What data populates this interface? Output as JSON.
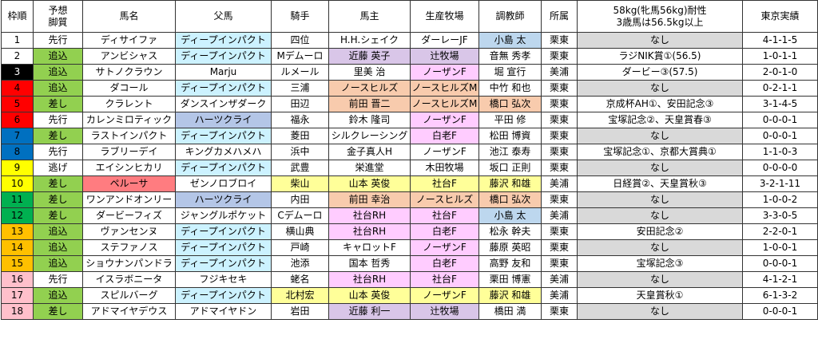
{
  "headers": {
    "waku": "枠順",
    "yoso": [
      "予想",
      "脚質"
    ],
    "horse": "馬名",
    "sire": "父馬",
    "jockey": "騎手",
    "owner": "馬主",
    "farm": "生産牧場",
    "trainer": "調教師",
    "stable": "所属",
    "durability": [
      "58kg(牝馬56kg)耐性",
      "3歳馬は56.5kg以上"
    ],
    "tokyo": "東京実績"
  },
  "colors": {
    "waku": {
      "1": "#ffffff",
      "2": "#ffffff",
      "3": "#000000",
      "4": "#ff0000",
      "5": "#ff0000",
      "6": "#ff0000",
      "7": "#0070c0",
      "8": "#0070c0",
      "9": "#ffff00",
      "10": "#ffff00",
      "11": "#00b050",
      "12": "#00b050",
      "13": "#ffc000",
      "14": "#ffc000",
      "15": "#ffc000",
      "16": "#ffc0cb",
      "17": "#ffc0cb",
      "18": "#ffc0cb"
    },
    "style_green": "#92d050",
    "sire_blue": "#ccf2ff",
    "sire_purple": "#b4c6e7",
    "horse_red": "#ff7c80",
    "owner_lavender": "#d9c6e8",
    "farm_orange": "#f8cbad",
    "farm_pink": "#ffccff",
    "owner_yellow": "#ffff99",
    "trainer_blue": "#bdd7ee",
    "trainer_lavender": "#e4dfec",
    "shadow_grey": "#d9d9d9"
  },
  "rows": [
    {
      "waku": "1",
      "style": "先行",
      "horse": "ディサイファ",
      "sire": "ディープインパクト",
      "jockey": "四位",
      "owner": "H.H.シェイク",
      "farm": "ダーレーJF",
      "trainer": "小島 太",
      "stable": "栗東",
      "durability": "なし",
      "tokyo": "4-1-1-5"
    },
    {
      "waku": "2",
      "style": "追込",
      "horse": "アンビシャス",
      "sire": "ディープインパクト",
      "jockey": "Mデムーロ",
      "owner": "近藤 英子",
      "farm": "辻牧場",
      "trainer": "音無 秀孝",
      "stable": "栗東",
      "durability": "ラジNIK賞①(56.5)",
      "tokyo": "1-0-1-1"
    },
    {
      "waku": "3",
      "style": "追込",
      "horse": "サトノクラウン",
      "sire": "Marju",
      "jockey": "ルメール",
      "owner": "里美 治",
      "farm": "ノーザンF",
      "trainer": "堀 宣行",
      "stable": "美浦",
      "durability": "ダービー③(57.5)",
      "tokyo": "2-0-1-0"
    },
    {
      "waku": "4",
      "style": "追込",
      "horse": "ダコール",
      "sire": "ディープインパクト",
      "jockey": "三浦",
      "owner": "ノースヒルズ",
      "farm": "ノースヒルズM",
      "trainer": "中竹 和也",
      "stable": "栗東",
      "durability": "なし",
      "tokyo": "0-2-1-1"
    },
    {
      "waku": "5",
      "style": "差し",
      "horse": "クラレント",
      "sire": "ダンスインザダーク",
      "jockey": "田辺",
      "owner": "前田 晋二",
      "farm": "ノースヒルズM",
      "trainer": "橋口 弘次",
      "stable": "栗東",
      "durability": "京成杯AH①、安田記念③",
      "tokyo": "3-1-4-5"
    },
    {
      "waku": "6",
      "style": "先行",
      "horse": "カレンミロティック",
      "sire": "ハーツクライ",
      "jockey": "福永",
      "owner": "鈴木 隆司",
      "farm": "ノーザンF",
      "trainer": "平田 修",
      "stable": "栗東",
      "durability": "宝塚記念②、天皇賞春③",
      "tokyo": "0-0-0-1"
    },
    {
      "waku": "7",
      "style": "差し",
      "horse": "ラストインパクト",
      "sire": "ディープインパクト",
      "jockey": "菱田",
      "owner": "シルクレーシング",
      "farm": "白老F",
      "trainer": "松田 博資",
      "stable": "栗東",
      "durability": "なし",
      "tokyo": "0-0-0-1"
    },
    {
      "waku": "8",
      "style": "先行",
      "horse": "ラブリーデイ",
      "sire": "キングカメハメハ",
      "jockey": "浜中",
      "owner": "金子真人H",
      "farm": "ノーザンF",
      "trainer": "池江 泰寿",
      "stable": "栗東",
      "durability": "宝塚記念①、京都大賞典①",
      "tokyo": "1-1-0-3"
    },
    {
      "waku": "9",
      "style": "逃げ",
      "horse": "エイシンヒカリ",
      "sire": "ディープインパクト",
      "jockey": "武豊",
      "owner": "栄進堂",
      "farm": "木田牧場",
      "trainer": "坂口 正則",
      "stable": "栗東",
      "durability": "なし",
      "tokyo": "0-0-0-0"
    },
    {
      "waku": "10",
      "style": "差し",
      "horse": "ペルーサ",
      "sire": "ゼンノロブロイ",
      "jockey": "柴山",
      "owner": "山本 英俊",
      "farm": "社台F",
      "trainer": "藤沢 和雄",
      "stable": "美浦",
      "durability": "日経賞②、天皇賞秋③",
      "tokyo": "3-2-1-11"
    },
    {
      "waku": "11",
      "style": "差し",
      "horse": "ワンアンドオンリー",
      "sire": "ハーツクライ",
      "jockey": "内田",
      "owner": "前田 幸治",
      "farm": "ノースヒルズ",
      "trainer": "橋口 弘次",
      "stable": "栗東",
      "durability": "なし",
      "tokyo": "1-0-0-2"
    },
    {
      "waku": "12",
      "style": "差し",
      "horse": "ダービーフィズ",
      "sire": "ジャングルポケット",
      "jockey": "Cデムーロ",
      "owner": "社台RH",
      "farm": "社台F",
      "trainer": "小島 太",
      "stable": "美浦",
      "durability": "なし",
      "tokyo": "3-3-0-5"
    },
    {
      "waku": "13",
      "style": "追込",
      "horse": "ヴァンセンヌ",
      "sire": "ディープインパクト",
      "jockey": "横山典",
      "owner": "社台RH",
      "farm": "白老F",
      "trainer": "松永 幹夫",
      "stable": "栗東",
      "durability": "安田記念②",
      "tokyo": "2-2-0-1"
    },
    {
      "waku": "14",
      "style": "追込",
      "horse": "ステファノス",
      "sire": "ディープインパクト",
      "jockey": "戸崎",
      "owner": "キャロットF",
      "farm": "ノーザンF",
      "trainer": "藤原 英昭",
      "stable": "栗東",
      "durability": "なし",
      "tokyo": "1-0-0-1"
    },
    {
      "waku": "15",
      "style": "追込",
      "horse": "ショウナンパンドラ",
      "sire": "ディープインパクト",
      "jockey": "池添",
      "owner": "国本 哲秀",
      "farm": "白老F",
      "trainer": "高野 友和",
      "stable": "栗東",
      "durability": "宝塚記念③",
      "tokyo": "0-0-0-1"
    },
    {
      "waku": "16",
      "style": "先行",
      "horse": "イスラボニータ",
      "sire": "フジキセキ",
      "jockey": "蛯名",
      "owner": "社台RH",
      "farm": "社台F",
      "trainer": "栗田 博憲",
      "stable": "美浦",
      "durability": "なし",
      "tokyo": "4-1-2-1"
    },
    {
      "waku": "17",
      "style": "追込",
      "horse": "スピルバーグ",
      "sire": "ディープインパクト",
      "jockey": "北村宏",
      "owner": "山本 英俊",
      "farm": "ノーザンF",
      "trainer": "藤沢 和雄",
      "stable": "美浦",
      "durability": "天皇賞秋①",
      "tokyo": "6-1-3-2"
    },
    {
      "waku": "18",
      "style": "差し",
      "horse": "アドマイヤデウス",
      "sire": "アドマイヤドン",
      "jockey": "岩田",
      "owner": "近藤 利一",
      "farm": "辻牧場",
      "trainer": "橋田 満",
      "stable": "栗東",
      "durability": "なし",
      "tokyo": "0-0-0-1"
    }
  ]
}
